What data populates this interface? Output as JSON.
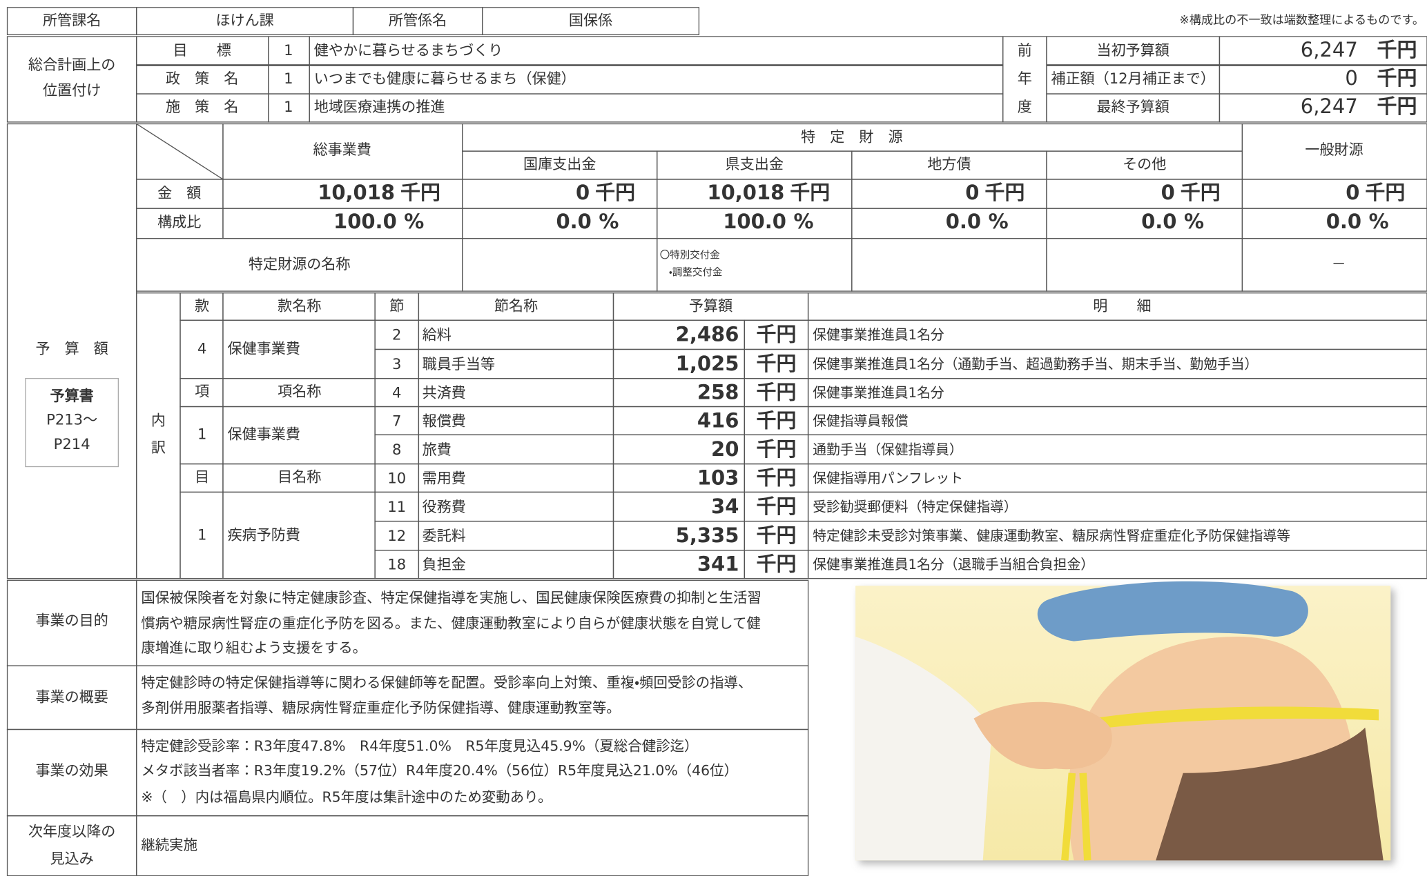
{
  "header": {
    "dept_label": "所管課名",
    "dept": "ほけん課",
    "section_label": "所管係名",
    "section": "国保係",
    "note": "※構成比の不一致は端数整理によるものです。"
  },
  "plan": {
    "label": [
      "総合計画上の",
      "位置付け"
    ],
    "rows": [
      {
        "label": "目　　標",
        "no": "1",
        "text": "健やかに暮らせるまちづくり"
      },
      {
        "label": "政　策　名",
        "no": "1",
        "text": "いつまでも健康に暮らせるまち（保健）"
      },
      {
        "label": "施　策　名",
        "no": "1",
        "text": "地域医療連携の推進"
      }
    ]
  },
  "prev_year": {
    "label": [
      "前",
      "年",
      "度"
    ],
    "rows": [
      {
        "label": "当初予算額",
        "value": "6,247",
        "unit": "千円"
      },
      {
        "label": "補正額（12月補正まで）",
        "value": "0",
        "unit": "千円"
      },
      {
        "label": "最終予算額",
        "value": "6,247",
        "unit": "千円"
      }
    ]
  },
  "budget": {
    "label": "予　算　額",
    "book": {
      "title": "予算書",
      "pages": [
        "P213～",
        "P214"
      ]
    },
    "total_header": "総事業費",
    "specific_header": "特　定　財　源",
    "general_header": "一般財源",
    "source_headers": [
      "国庫支出金",
      "県支出金",
      "地方債",
      "その他"
    ],
    "amount_label": "金　額",
    "ratio_label": "構成比",
    "amounts": [
      {
        "value": "10,018",
        "unit": "千円"
      },
      {
        "value": "0",
        "unit": "千円"
      },
      {
        "value": "10,018",
        "unit": "千円"
      },
      {
        "value": "0",
        "unit": "千円"
      },
      {
        "value": "0",
        "unit": "千円"
      },
      {
        "value": "0",
        "unit": "千円"
      }
    ],
    "ratios": [
      {
        "value": "100.0",
        "unit": "%"
      },
      {
        "value": "0.0",
        "unit": "%"
      },
      {
        "value": "100.0",
        "unit": "%"
      },
      {
        "value": "0.0",
        "unit": "%"
      },
      {
        "value": "0.0",
        "unit": "%"
      },
      {
        "value": "0.0",
        "unit": "%"
      }
    ],
    "source_name_label": "特定財源の名称",
    "prefecture_source_names": [
      "〇特別交付金",
      "・調整交付金"
    ],
    "general_source_name": "－"
  },
  "breakdown": {
    "label": [
      "内",
      "訳"
    ],
    "headers": {
      "kan": "款",
      "kan_name": "款名称",
      "setsu": "節",
      "setsu_name": "節名称",
      "amount": "予算額",
      "detail": "明　　細",
      "kou": "項",
      "kou_name": "項名称",
      "moku": "目",
      "moku_name": "目名称"
    },
    "kan": {
      "no": "4",
      "name": "保健事業費"
    },
    "kou": {
      "no": "1",
      "name": "保健事業費"
    },
    "moku": {
      "no": "1",
      "name": "疾病予防費"
    },
    "items": [
      {
        "no": "2",
        "name": "給料",
        "amount": "2,486",
        "unit": "千円",
        "detail": "保健事業推進員1名分"
      },
      {
        "no": "3",
        "name": "職員手当等",
        "amount": "1,025",
        "unit": "千円",
        "detail": "保健事業推進員1名分（通勤手当、超過勤務手当、期末手当、勤勉手当）"
      },
      {
        "no": "4",
        "name": "共済費",
        "amount": "258",
        "unit": "千円",
        "detail": "保健事業推進員1名分"
      },
      {
        "no": "7",
        "name": "報償費",
        "amount": "416",
        "unit": "千円",
        "detail": "保健指導員報償"
      },
      {
        "no": "8",
        "name": "旅費",
        "amount": "20",
        "unit": "千円",
        "detail": "通勤手当（保健指導員）"
      },
      {
        "no": "10",
        "name": "需用費",
        "amount": "103",
        "unit": "千円",
        "detail": "保健指導用パンフレット"
      },
      {
        "no": "11",
        "name": "役務費",
        "amount": "34",
        "unit": "千円",
        "detail": "受診勧奨郵便料（特定保健指導）"
      },
      {
        "no": "12",
        "name": "委託料",
        "amount": "5,335",
        "unit": "千円",
        "detail": "特定健診未受診対策事業、健康運動教室、糖尿病性腎症重症化予防保健指導等"
      },
      {
        "no": "18",
        "name": "負担金",
        "amount": "341",
        "unit": "千円",
        "detail": "保健事業推進員1名分（退職手当組合負担金）"
      }
    ]
  },
  "sections": [
    {
      "label": [
        "事業の目的"
      ],
      "lines": [
        "国保被保険者を対象に特定健康診査、特定保健指導を実施し、国民健康保険医療費の抑制と生活習",
        "慣病や糖尿病性腎症の重症化予防を図る。また、健康運動教室により自らが健康状態を自覚して健",
        "康増進に取り組むよう支援をする。"
      ]
    },
    {
      "label": [
        "事業の概要"
      ],
      "lines": [
        "特定健診時の特定保健指導等に関わる保健師等を配置。受診率向上対策、重複・頻回受診の指導、",
        "多剤併用服薬者指導、糖尿病性腎症重症化予防保健指導、健康運動教室等。"
      ]
    },
    {
      "label": [
        "事業の効果"
      ],
      "lines": [
        "特定健診受診率：R3年度47.8%　R4年度51.0%　R5年度見込45.9%（夏総合健診迄）",
        "メタボ該当者率：R3年度19.2%（57位）R4年度20.4%（56位）R5年度見込21.0%（46位）",
        "※（　）内は福島県内順位。R5年度は集計途中のため変動あり。"
      ]
    },
    {
      "label": [
        "次年度以降の",
        "見込み"
      ],
      "lines": [
        "継続実施"
      ]
    }
  ]
}
